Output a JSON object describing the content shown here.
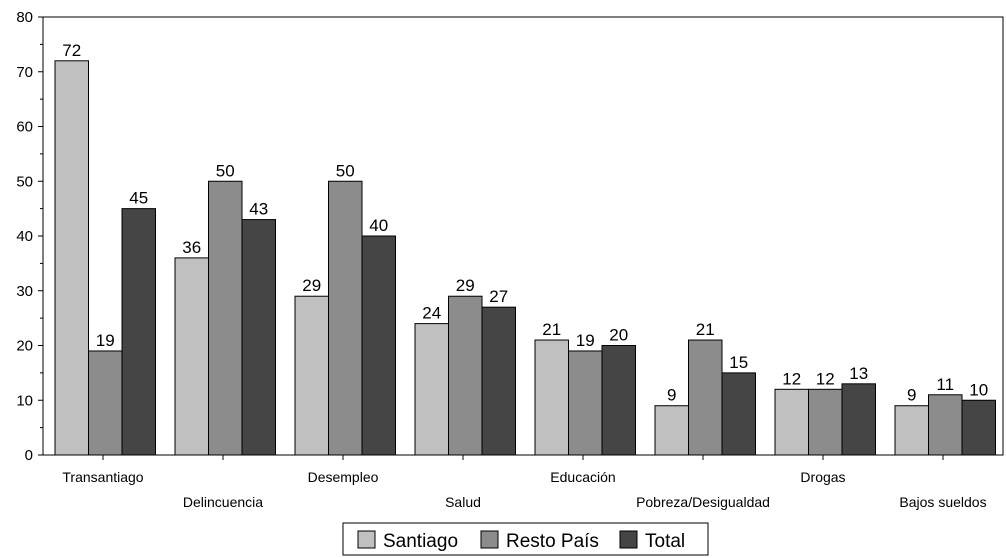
{
  "chart_data": {
    "type": "bar",
    "categories": [
      "Transantiago",
      "Delincuencia",
      "Desempleo",
      "Salud",
      "Educación",
      "Pobreza/Desigualdad",
      "Drogas",
      "Bajos sueldos"
    ],
    "series": [
      {
        "name": "Santiago",
        "color": "#c0c0c0",
        "values": [
          72,
          36,
          29,
          24,
          21,
          9,
          12,
          9
        ]
      },
      {
        "name": "Resto País",
        "color": "#8c8c8c",
        "values": [
          19,
          50,
          50,
          29,
          19,
          21,
          12,
          11
        ]
      },
      {
        "name": "Total",
        "color": "#454545",
        "values": [
          45,
          43,
          40,
          27,
          20,
          15,
          13,
          10
        ]
      }
    ],
    "ylim": [
      0,
      80
    ],
    "yticks": [
      0,
      10,
      20,
      30,
      40,
      50,
      60,
      70,
      80
    ],
    "grid": false,
    "legend": "bottom-center",
    "data_labels": true
  }
}
